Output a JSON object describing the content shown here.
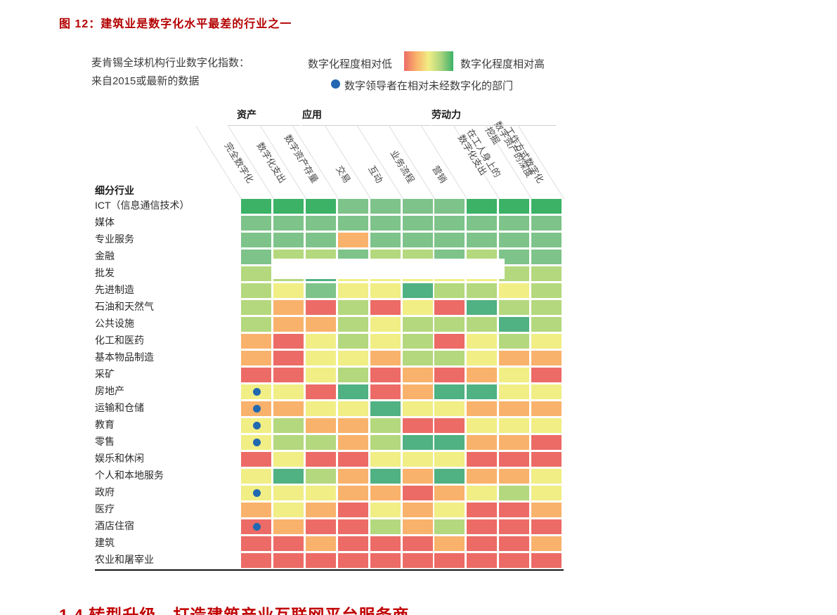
{
  "page": {
    "figure_title": "图 12：建筑业是数字化水平最差的行业之一",
    "section_heading": "1.4 转型升级，打造建筑产业互联网平台服务商",
    "accent_color": "#b40000"
  },
  "chart": {
    "subtitle_line1": "麦肯锡全球机构行业数字化指数：",
    "subtitle_line2": "来自2015或最新的数据",
    "legend": {
      "low_label": "数字化程度相对低",
      "high_label": "数字化程度相对高",
      "leader_label": "数字领导者在相对未经数字化的部门",
      "leader_dot_color": "#2268b0",
      "gradient_stops": [
        "#ec6b66",
        "#f9b26b",
        "#f1ee85",
        "#a9d47e",
        "#3bb266"
      ]
    },
    "row_header": "细分行业"
  },
  "colors": {
    "dg": "#3bb266",
    "mg": "#7ec38a",
    "tg": "#50b182",
    "lg": "#b4d87d",
    "y": "#f1ee85",
    "o": "#f9b26b",
    "r": "#ec6b66"
  },
  "chart_data": {
    "type": "heatmap",
    "title": "麦肯锡全球机构行业数字化指数：来自2015或最新的数据",
    "column_groups": [
      {
        "label": "资产",
        "columns": [
          2,
          3
        ]
      },
      {
        "label": "应用",
        "columns": [
          4,
          7
        ]
      },
      {
        "label": "劳动力",
        "columns": [
          8,
          10
        ]
      }
    ],
    "columns": [
      "完全数字化",
      "数字化支出",
      "数字资产存量",
      "交易",
      "互动",
      "业务流程",
      "营销",
      "在工人身上的\n数字化支出",
      "数字资产的深度\n挖掘",
      "工作方式数字化"
    ],
    "rows": [
      "ICT（信息通信技术）",
      "媒体",
      "专业服务",
      "金融",
      "批发",
      "先进制造",
      "石油和天然气",
      "公共设施",
      "化工和医药",
      "基本物品制造",
      "采矿",
      "房地产",
      "运输和仓储",
      "教育",
      "零售",
      "娱乐和休闲",
      "个人和本地服务",
      "政府",
      "医疗",
      "酒店住宿",
      "建筑",
      "农业和屠宰业"
    ],
    "scale": {
      "r": "lowest",
      "o": "low",
      "y": "medium",
      "lg": "medium-high",
      "tg": "high",
      "mg": "high",
      "dg": "highest"
    },
    "values": [
      [
        "dg",
        "dg",
        "dg",
        "mg",
        "mg",
        "mg",
        "mg",
        "dg",
        "dg",
        "dg"
      ],
      [
        "mg",
        "mg",
        "mg",
        "mg",
        "mg",
        "mg",
        "mg",
        "mg",
        "mg",
        "mg"
      ],
      [
        "mg",
        "mg",
        "mg",
        "o",
        "mg",
        "mg",
        "mg",
        "mg",
        "mg",
        "mg"
      ],
      [
        "mg",
        "lg",
        "lg",
        "mg",
        "lg",
        "lg",
        "mg",
        "lg",
        "mg",
        "mg"
      ],
      [
        "lg",
        "lg",
        "tg",
        "y",
        "y",
        "y",
        "y",
        "y",
        "lg",
        "lg"
      ],
      [
        "lg",
        "y",
        "mg",
        "y",
        "y",
        "tg",
        "lg",
        "lg",
        "y",
        "lg"
      ],
      [
        "lg",
        "o",
        "r",
        "lg",
        "r",
        "y",
        "r",
        "tg",
        "lg",
        "lg"
      ],
      [
        "lg",
        "o",
        "o",
        "lg",
        "y",
        "lg",
        "lg",
        "lg",
        "tg",
        "lg"
      ],
      [
        "o",
        "r",
        "y",
        "lg",
        "y",
        "lg",
        "r",
        "y",
        "lg",
        "y"
      ],
      [
        "o",
        "r",
        "y",
        "y",
        "o",
        "lg",
        "lg",
        "y",
        "o",
        "o"
      ],
      [
        "r",
        "r",
        "y",
        "lg",
        "r",
        "o",
        "r",
        "o",
        "y",
        "r"
      ],
      [
        "y",
        "y",
        "r",
        "tg",
        "r",
        "o",
        "tg",
        "tg",
        "y",
        "y"
      ],
      [
        "o",
        "o",
        "y",
        "y",
        "tg",
        "y",
        "y",
        "o",
        "o",
        "o"
      ],
      [
        "y",
        "lg",
        "o",
        "o",
        "lg",
        "r",
        "r",
        "y",
        "y",
        "y"
      ],
      [
        "y",
        "lg",
        "lg",
        "o",
        "lg",
        "tg",
        "tg",
        "o",
        "o",
        "r"
      ],
      [
        "r",
        "y",
        "r",
        "r",
        "y",
        "y",
        "y",
        "r",
        "r",
        "r"
      ],
      [
        "y",
        "tg",
        "lg",
        "o",
        "tg",
        "o",
        "tg",
        "o",
        "o",
        "y"
      ],
      [
        "y",
        "y",
        "y",
        "o",
        "o",
        "r",
        "o",
        "y",
        "lg",
        "y"
      ],
      [
        "o",
        "y",
        "o",
        "r",
        "y",
        "o",
        "y",
        "r",
        "r",
        "o"
      ],
      [
        "r",
        "o",
        "r",
        "r",
        "lg",
        "o",
        "lg",
        "r",
        "r",
        "r"
      ],
      [
        "r",
        "r",
        "o",
        "r",
        "r",
        "r",
        "o",
        "r",
        "r",
        "o"
      ],
      [
        "r",
        "r",
        "r",
        "r",
        "r",
        "r",
        "r",
        "r",
        "r",
        "r"
      ]
    ],
    "leader_dot_rows": [
      11,
      12,
      13,
      14,
      17,
      19
    ]
  }
}
